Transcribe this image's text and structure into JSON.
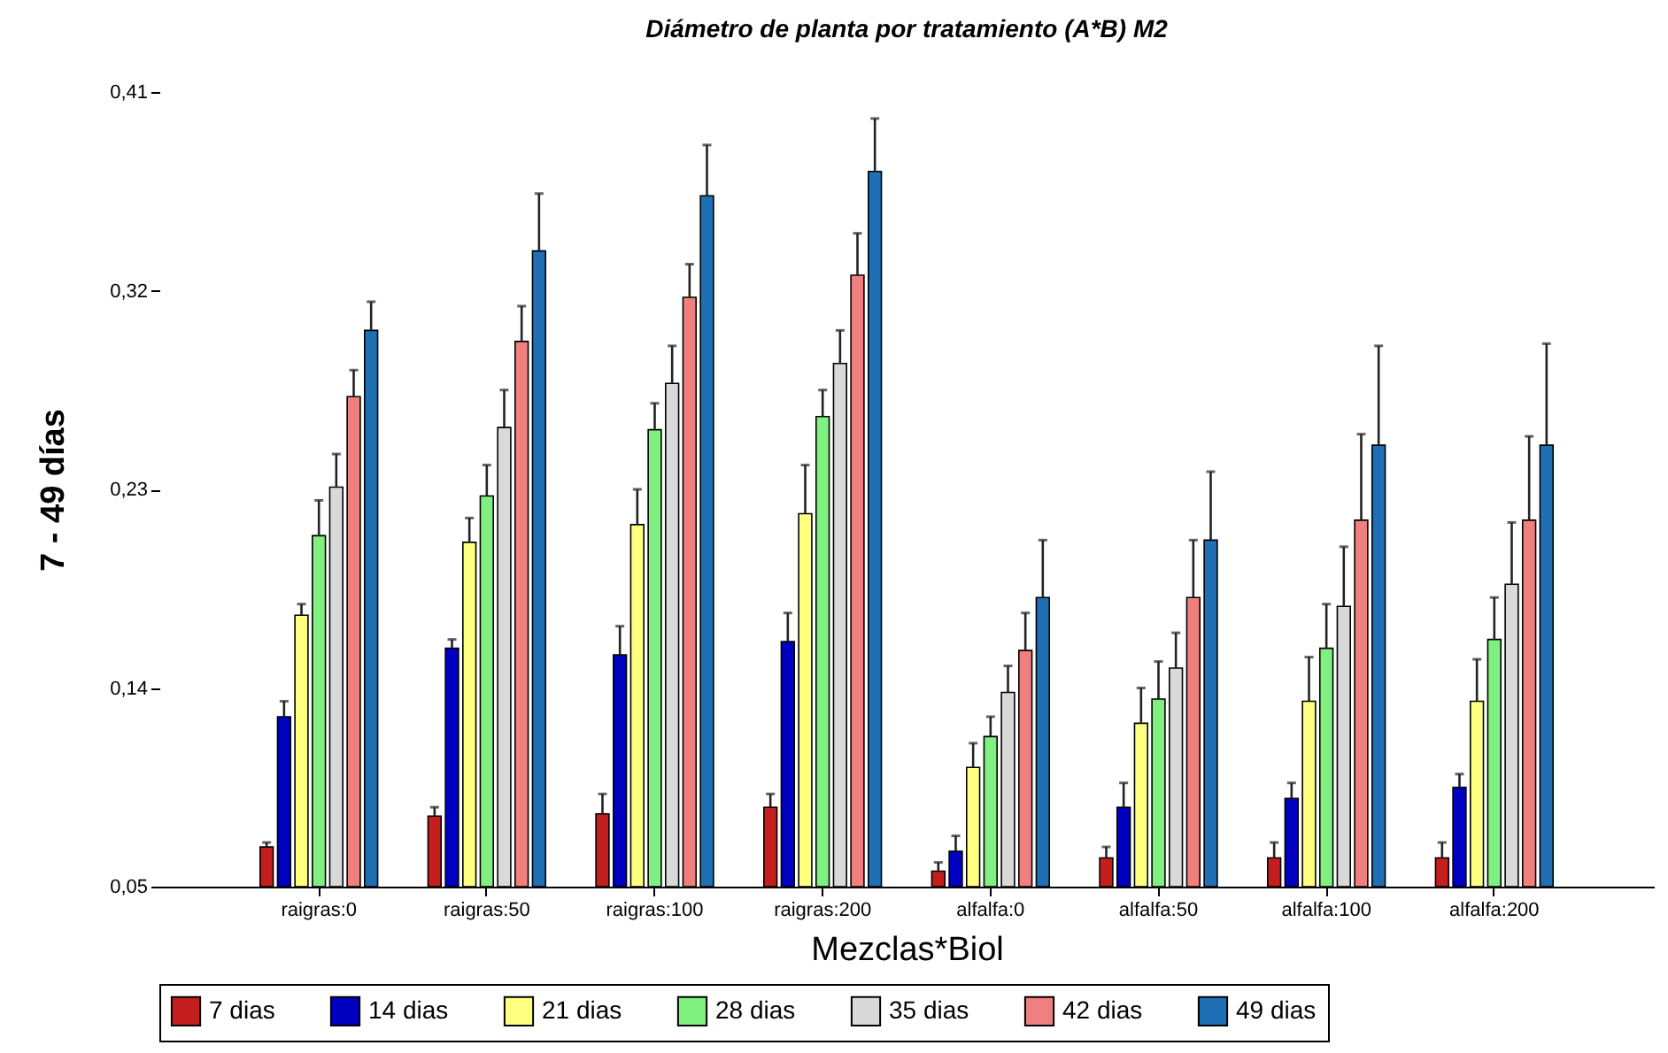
{
  "chart_data": {
    "type": "bar",
    "title": "Diámetro de planta por tratamiento (A*B) M2",
    "xlabel": "Mezclas*Biol",
    "ylabel": "7 - 49 días",
    "categories": [
      "raigras:0",
      "raigras:50",
      "raigras:100",
      "raigras:200",
      "alfalfa:0",
      "alfalfa:50",
      "alfalfa:100",
      "alfalfa:200"
    ],
    "series": [
      {
        "name": "7 dias",
        "color": "#c41e1e",
        "values": [
          0.068,
          0.082,
          0.083,
          0.086,
          0.057,
          0.063,
          0.063,
          0.063
        ],
        "errors": [
          [
            0.068,
            0.07
          ],
          [
            0.082,
            0.086
          ],
          [
            0.083,
            0.092
          ],
          [
            0.086,
            0.092
          ],
          [
            0.057,
            0.061
          ],
          [
            0.063,
            0.068
          ],
          [
            0.063,
            0.07
          ],
          [
            0.063,
            0.07
          ]
        ]
      },
      {
        "name": "14 dias",
        "color": "#0000c0",
        "values": [
          0.127,
          0.158,
          0.155,
          0.161,
          0.066,
          0.086,
          0.09,
          0.095
        ],
        "errors": [
          [
            0.127,
            0.134
          ],
          [
            0.158,
            0.162
          ],
          [
            0.155,
            0.168
          ],
          [
            0.161,
            0.174
          ],
          [
            0.066,
            0.073
          ],
          [
            0.086,
            0.097
          ],
          [
            0.09,
            0.097
          ],
          [
            0.095,
            0.101
          ]
        ]
      },
      {
        "name": "21 dias",
        "color": "#ffff80",
        "values": [
          0.173,
          0.206,
          0.214,
          0.219,
          0.104,
          0.124,
          0.134,
          0.134
        ],
        "errors": [
          [
            0.173,
            0.178
          ],
          [
            0.206,
            0.217
          ],
          [
            0.214,
            0.23
          ],
          [
            0.219,
            0.241
          ],
          [
            0.104,
            0.115
          ],
          [
            0.124,
            0.14
          ],
          [
            0.134,
            0.154
          ],
          [
            0.134,
            0.153
          ]
        ]
      },
      {
        "name": "28 dias",
        "color": "#80f080",
        "values": [
          0.209,
          0.227,
          0.257,
          0.263,
          0.118,
          0.135,
          0.158,
          0.162
        ],
        "errors": [
          [
            0.209,
            0.225
          ],
          [
            0.227,
            0.241
          ],
          [
            0.257,
            0.269
          ],
          [
            0.263,
            0.275
          ],
          [
            0.118,
            0.127
          ],
          [
            0.135,
            0.152
          ],
          [
            0.158,
            0.178
          ],
          [
            0.162,
            0.181
          ]
        ]
      },
      {
        "name": "35 dias",
        "color": "#d9d9d9",
        "values": [
          0.231,
          0.258,
          0.278,
          0.287,
          0.138,
          0.149,
          0.177,
          0.187
        ],
        "errors": [
          [
            0.231,
            0.246
          ],
          [
            0.258,
            0.275
          ],
          [
            0.278,
            0.295
          ],
          [
            0.287,
            0.302
          ],
          [
            0.138,
            0.15
          ],
          [
            0.149,
            0.165
          ],
          [
            0.177,
            0.204
          ],
          [
            0.187,
            0.215
          ]
        ]
      },
      {
        "name": "42 dias",
        "color": "#f08080",
        "values": [
          0.272,
          0.297,
          0.317,
          0.327,
          0.157,
          0.181,
          0.216,
          0.216
        ],
        "errors": [
          [
            0.272,
            0.284
          ],
          [
            0.297,
            0.313
          ],
          [
            0.317,
            0.332
          ],
          [
            0.327,
            0.346
          ],
          [
            0.157,
            0.174
          ],
          [
            0.181,
            0.207
          ],
          [
            0.216,
            0.255
          ],
          [
            0.216,
            0.254
          ]
        ]
      },
      {
        "name": "49 dias",
        "color": "#1f6fb4",
        "values": [
          0.302,
          0.338,
          0.363,
          0.374,
          0.181,
          0.207,
          0.25,
          0.25
        ],
        "errors": [
          [
            0.302,
            0.315
          ],
          [
            0.338,
            0.364
          ],
          [
            0.363,
            0.386
          ],
          [
            0.374,
            0.398
          ],
          [
            0.181,
            0.207
          ],
          [
            0.207,
            0.238
          ],
          [
            0.25,
            0.295
          ],
          [
            0.25,
            0.296
          ]
        ]
      }
    ],
    "ylim": [
      0.05,
      0.41
    ],
    "yticks": [
      {
        "value": 0.05,
        "label": "0,05"
      },
      {
        "value": 0.14,
        "label": "0,14"
      },
      {
        "value": 0.23,
        "label": "0,23"
      },
      {
        "value": 0.32,
        "label": "0,32"
      },
      {
        "value": 0.41,
        "label": "0,41"
      }
    ],
    "legend": "bottom"
  }
}
